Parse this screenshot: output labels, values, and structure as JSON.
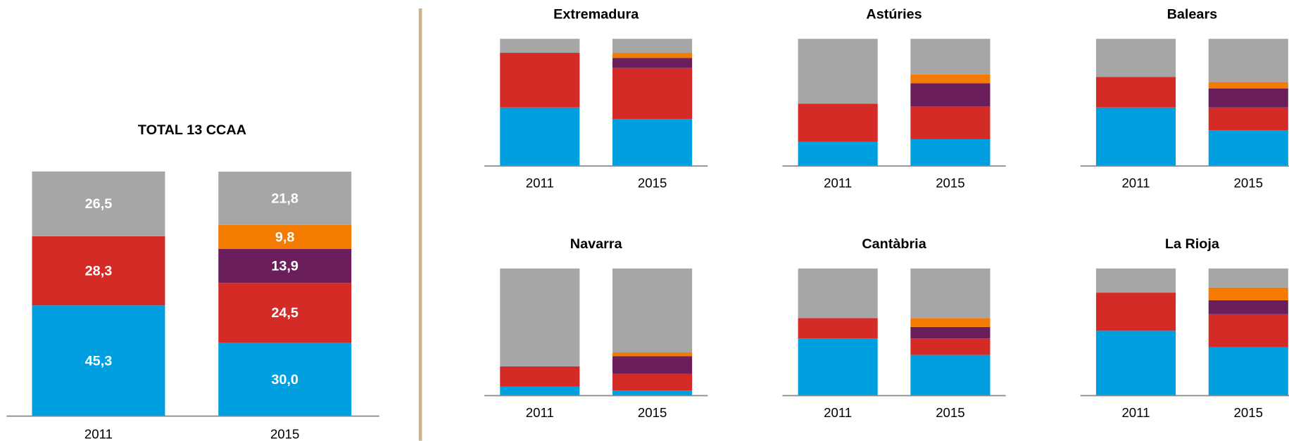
{
  "chart_data": [
    {
      "type": "bar",
      "stacked": true,
      "title": "TOTAL 13 CCAA",
      "categories": [
        "2011",
        "2015"
      ],
      "ylim": [
        0,
        100
      ],
      "series": [
        {
          "color": "#00a0e0",
          "values": [
            45.3,
            30.0
          ],
          "value_labels": [
            "45,3",
            "30,0"
          ]
        },
        {
          "color": "#d52b27",
          "values": [
            28.3,
            24.5
          ],
          "value_labels": [
            "28,3",
            "24,5"
          ]
        },
        {
          "color": "#6a1f5c",
          "values": [
            null,
            13.9
          ],
          "value_labels": [
            null,
            "13,9"
          ]
        },
        {
          "color": "#f47a00",
          "values": [
            null,
            9.8
          ],
          "value_labels": [
            null,
            "9,8"
          ]
        },
        {
          "color": "#a6a6a6",
          "values": [
            26.5,
            21.8
          ],
          "value_labels": [
            "26,5",
            "21,8"
          ]
        }
      ]
    },
    {
      "type": "bar",
      "stacked": true,
      "title": "Extremadura",
      "categories": [
        "2011",
        "2015"
      ],
      "ylim": [
        0,
        100
      ],
      "series": [
        {
          "color": "#00a0e0",
          "values": [
            46,
            37
          ]
        },
        {
          "color": "#d52b27",
          "values": [
            43,
            40
          ]
        },
        {
          "color": "#6a1f5c",
          "values": [
            null,
            8
          ]
        },
        {
          "color": "#f47a00",
          "values": [
            null,
            4
          ]
        },
        {
          "color": "#a6a6a6",
          "values": [
            11,
            11
          ]
        }
      ]
    },
    {
      "type": "bar",
      "stacked": true,
      "title": "Astúries",
      "categories": [
        "2011",
        "2015"
      ],
      "ylim": [
        0,
        100
      ],
      "series": [
        {
          "color": "#00a0e0",
          "values": [
            19,
            21
          ]
        },
        {
          "color": "#d52b27",
          "values": [
            30,
            26
          ]
        },
        {
          "color": "#6a1f5c",
          "values": [
            null,
            18
          ]
        },
        {
          "color": "#f47a00",
          "values": [
            null,
            7
          ]
        },
        {
          "color": "#a6a6a6",
          "values": [
            51,
            28
          ]
        }
      ]
    },
    {
      "type": "bar",
      "stacked": true,
      "title": "Balears",
      "categories": [
        "2011",
        "2015"
      ],
      "ylim": [
        0,
        100
      ],
      "series": [
        {
          "color": "#00a0e0",
          "values": [
            46,
            28
          ]
        },
        {
          "color": "#d52b27",
          "values": [
            24,
            18
          ]
        },
        {
          "color": "#6a1f5c",
          "values": [
            null,
            15
          ]
        },
        {
          "color": "#f47a00",
          "values": [
            null,
            5
          ]
        },
        {
          "color": "#a6a6a6",
          "values": [
            30,
            34
          ]
        }
      ]
    },
    {
      "type": "bar",
      "stacked": true,
      "title": "Navarra",
      "categories": [
        "2011",
        "2015"
      ],
      "ylim": [
        0,
        100
      ],
      "series": [
        {
          "color": "#00a0e0",
          "values": [
            7,
            4
          ]
        },
        {
          "color": "#d52b27",
          "values": [
            16,
            13
          ]
        },
        {
          "color": "#6a1f5c",
          "values": [
            null,
            14
          ]
        },
        {
          "color": "#f47a00",
          "values": [
            null,
            3
          ]
        },
        {
          "color": "#a6a6a6",
          "values": [
            77,
            66
          ]
        }
      ]
    },
    {
      "type": "bar",
      "stacked": true,
      "title": "Cantàbria",
      "categories": [
        "2011",
        "2015"
      ],
      "ylim": [
        0,
        100
      ],
      "series": [
        {
          "color": "#00a0e0",
          "values": [
            45,
            32
          ]
        },
        {
          "color": "#d52b27",
          "values": [
            16,
            13
          ]
        },
        {
          "color": "#6a1f5c",
          "values": [
            null,
            9
          ]
        },
        {
          "color": "#f47a00",
          "values": [
            null,
            7
          ]
        },
        {
          "color": "#a6a6a6",
          "values": [
            39,
            39
          ]
        }
      ]
    },
    {
      "type": "bar",
      "stacked": true,
      "title": "La Rioja",
      "categories": [
        "2011",
        "2015"
      ],
      "ylim": [
        0,
        100
      ],
      "series": [
        {
          "color": "#00a0e0",
          "values": [
            51,
            38
          ]
        },
        {
          "color": "#d52b27",
          "values": [
            30,
            26
          ]
        },
        {
          "color": "#6a1f5c",
          "values": [
            null,
            11
          ]
        },
        {
          "color": "#f47a00",
          "values": [
            null,
            10
          ]
        },
        {
          "color": "#a6a6a6",
          "values": [
            19,
            15
          ]
        }
      ]
    }
  ]
}
